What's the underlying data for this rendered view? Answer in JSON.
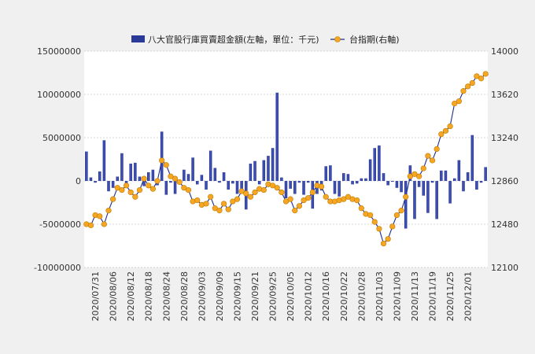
{
  "chart_data": {
    "type": "bar+line",
    "legend": {
      "placement": "top-center",
      "items": [
        {
          "label": "八大官股行庫買賣超金額(左軸，單位：千元)",
          "color": "#2b3a99",
          "kind": "bar"
        },
        {
          "label": "台指期(右軸)",
          "color": "#f5a623",
          "line_color": "#1f2d8c",
          "kind": "line-marker"
        }
      ]
    },
    "left_axis": {
      "min": -10000000,
      "max": 15000000,
      "ticks": [
        15000000,
        10000000,
        5000000,
        0,
        -5000000,
        -10000000
      ],
      "tick_labels": [
        "15000000",
        "10000000",
        "5000000",
        "0",
        "-5000000",
        "-10000000"
      ]
    },
    "right_axis": {
      "min": 12100,
      "max": 14000,
      "ticks": [
        14000,
        13620,
        13240,
        12860,
        12480,
        12100
      ],
      "tick_labels": [
        "14000",
        "13620",
        "13240",
        "12860",
        "12480",
        "12100"
      ]
    },
    "x_labels": [
      "2020/07/31",
      "2020/08/06",
      "2020/08/12",
      "2020/08/18",
      "2020/08/24",
      "2020/08/28",
      "2020/09/03",
      "2020/09/09",
      "2020/09/15",
      "2020/09/21",
      "2020/09/25",
      "2020/10/05",
      "2020/10/12",
      "2020/10/16",
      "2020/10/22",
      "2020/10/28",
      "2020/11/03",
      "2020/11/09",
      "2020/11/13",
      "2020/11/19",
      "2020/11/25",
      "2020/12/01"
    ],
    "x_label_every": 4,
    "bars": [
      3400000,
      400000,
      -200000,
      1100000,
      4700000,
      -1200000,
      -800000,
      500000,
      3200000,
      -400000,
      2000000,
      2100000,
      500000,
      -600000,
      1000000,
      1300000,
      -500000,
      5700000,
      -1600000,
      -200000,
      -1500000,
      -300000,
      1300000,
      800000,
      2700000,
      -400000,
      700000,
      -1000000,
      3500000,
      1500000,
      -200000,
      1000000,
      -1000000,
      -300000,
      -1500000,
      -1300000,
      -3300000,
      2000000,
      2300000,
      -400000,
      2400000,
      2900000,
      3800000,
      10200000,
      400000,
      -2000000,
      -900000,
      -1500000,
      -200000,
      -1600000,
      -200000,
      -3200000,
      -1500000,
      -1100000,
      1700000,
      1800000,
      -1500000,
      -1800000,
      900000,
      800000,
      -400000,
      -300000,
      300000,
      300000,
      2500000,
      3800000,
      4100000,
      900000,
      -500000,
      -100000,
      -800000,
      -1300000,
      -5500000,
      1800000,
      -4400000,
      -700000,
      -1700000,
      -3700000,
      -200000,
      -4400000,
      1200000,
      1200000,
      -2600000,
      300000,
      2400000,
      -1200000,
      1000000,
      5300000,
      -1000000,
      -200000,
      1600000
    ],
    "line": [
      12480,
      12470,
      12560,
      12550,
      12480,
      12600,
      12700,
      12800,
      12780,
      12820,
      12760,
      12720,
      12780,
      12880,
      12820,
      12790,
      12860,
      13040,
      13000,
      12900,
      12880,
      12850,
      12800,
      12780,
      12680,
      12690,
      12650,
      12660,
      12720,
      12620,
      12600,
      12660,
      12610,
      12680,
      12700,
      12770,
      12750,
      12720,
      12760,
      12790,
      12780,
      12830,
      12820,
      12800,
      12760,
      12680,
      12700,
      12600,
      12640,
      12690,
      12710,
      12760,
      12820,
      12810,
      12720,
      12680,
      12680,
      12690,
      12700,
      12720,
      12700,
      12690,
      12620,
      12570,
      12560,
      12500,
      12440,
      12310,
      12350,
      12460,
      12560,
      12600,
      12720,
      12900,
      12920,
      12900,
      12970,
      13080,
      13040,
      13140,
      13270,
      13300,
      13340,
      13540,
      13560,
      13650,
      13690,
      13720,
      13780,
      13760,
      13800
    ]
  }
}
